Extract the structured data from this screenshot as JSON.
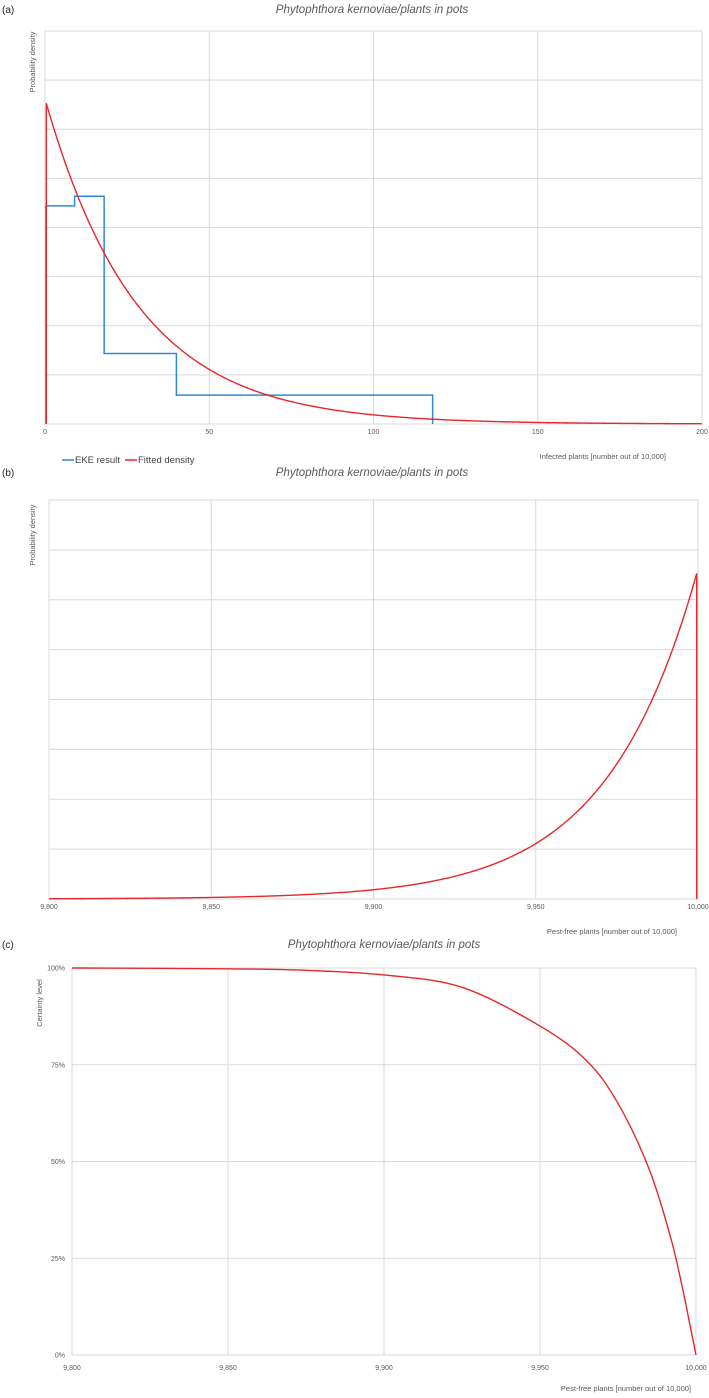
{
  "chart_data": [
    {
      "panel_label": "(a)",
      "type": "line",
      "title": "Phytophthora kernoviae/plants in pots",
      "xlabel": "Infected plants [number out of 10,000]",
      "ylabel": "Probability density",
      "xlim": [
        0,
        200
      ],
      "x_ticks": [
        0,
        50,
        100,
        150,
        200
      ],
      "x_tick_labels": [
        "0",
        "50",
        "100",
        "150",
        "200"
      ],
      "y_ticks_labeled": false,
      "y_gridlines": 8,
      "legend": {
        "position": "bottom-left",
        "entries": [
          "EKE result",
          "Fitted density"
        ]
      },
      "series": [
        {
          "name": "EKE result",
          "color": "#2e8bd3",
          "style": "step",
          "bins": [
            {
              "x0": 0.3,
              "x1": 9,
              "density": 0.68
            },
            {
              "x0": 9,
              "x1": 18,
              "density": 0.71
            },
            {
              "x0": 18,
              "x1": 40,
              "density": 0.22
            },
            {
              "x0": 40,
              "x1": 118,
              "density": 0.09
            }
          ]
        },
        {
          "name": "Fitted density",
          "color": "#e8262b",
          "style": "curve",
          "shape": "exponential-like decay",
          "peak_x": 0.4,
          "peak_density": 1.0,
          "decay_scale": 28
        }
      ]
    },
    {
      "panel_label": "(b)",
      "type": "line",
      "title": "Phytophthora kernoviae/plants in pots",
      "xlabel": "Pest-free plants [number out of 10,000]",
      "ylabel": "Probability density",
      "xlim": [
        9800,
        10000
      ],
      "x_ticks": [
        9800,
        9850,
        9900,
        9950,
        10000
      ],
      "x_tick_labels": [
        "9,800",
        "9,850",
        "9,900",
        "9,950",
        "10,000"
      ],
      "y_ticks_labeled": false,
      "y_gridlines": 8,
      "series": [
        {
          "color": "#e8262b",
          "style": "curve",
          "shape": "exponential growth toward 10,000",
          "peak_x": 9999.6,
          "peak_density": 1.0,
          "growth_scale": 28
        }
      ]
    },
    {
      "panel_label": "(c)",
      "type": "line",
      "title": "Phytophthora kernoviae/plants in pots",
      "xlabel": "Pest-free plants [number out of 10,000]",
      "ylabel": "Certainty level",
      "xlim": [
        9800,
        10000
      ],
      "ylim": [
        0,
        100
      ],
      "x_ticks": [
        9800,
        9850,
        9900,
        9950,
        10000
      ],
      "x_tick_labels": [
        "9,800",
        "9,850",
        "9,900",
        "9,950",
        "10,000"
      ],
      "y_ticks": [
        0,
        25,
        50,
        75,
        100
      ],
      "y_tick_labels": [
        "0%",
        "25%",
        "50%",
        "75%",
        "100%"
      ],
      "series": [
        {
          "color": "#e8262b",
          "style": "curve",
          "shape": "survival curve",
          "points": [
            [
              9800,
              100
            ],
            [
              9850,
              99.8
            ],
            [
              9875,
              99.4
            ],
            [
              9900,
              98.2
            ],
            [
              9925,
              95.0
            ],
            [
              9950,
              85.0
            ],
            [
              9965,
              76.0
            ],
            [
              9975,
              65.0
            ],
            [
              9985,
              48.0
            ],
            [
              9992,
              30.0
            ],
            [
              9996,
              16.0
            ],
            [
              9998,
              8.0
            ],
            [
              10000,
              0
            ]
          ]
        }
      ]
    }
  ]
}
